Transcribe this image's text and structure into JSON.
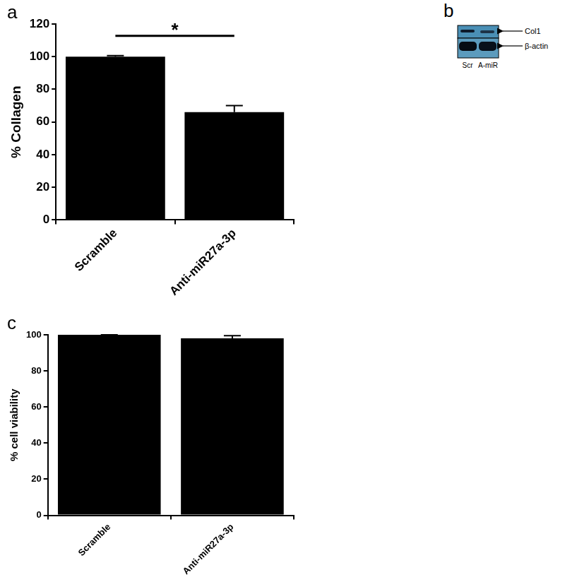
{
  "chart_data": [
    {
      "panel": "a",
      "type": "bar",
      "categories": [
        "Scramble",
        "Anti-miR27a-3p"
      ],
      "values": [
        100,
        66
      ],
      "errors": [
        0.6,
        4
      ],
      "color": "#000000",
      "y_label": "% Collagen",
      "ylim": [
        0,
        120
      ],
      "yticks": [
        0,
        20,
        40,
        60,
        80,
        100,
        120
      ],
      "grid": false,
      "annotations": [
        {
          "text": "*",
          "between": [
            "Scramble",
            "Anti-miR27a-3p"
          ]
        }
      ]
    },
    {
      "panel": "c",
      "type": "bar",
      "categories": [
        "Scramble",
        "Anti-miR27a-3p"
      ],
      "values": [
        100,
        98
      ],
      "errors": [
        0,
        1.5
      ],
      "color": "#000000",
      "y_label": "% cell viability",
      "ylim": [
        0,
        100
      ],
      "yticks": [
        0,
        20,
        40,
        60,
        80,
        100
      ],
      "grid": false
    }
  ],
  "blot": {
    "panel": "b",
    "lanes": [
      "Scr",
      "A-miR"
    ],
    "bands": [
      "Col1",
      "β-actin"
    ]
  }
}
